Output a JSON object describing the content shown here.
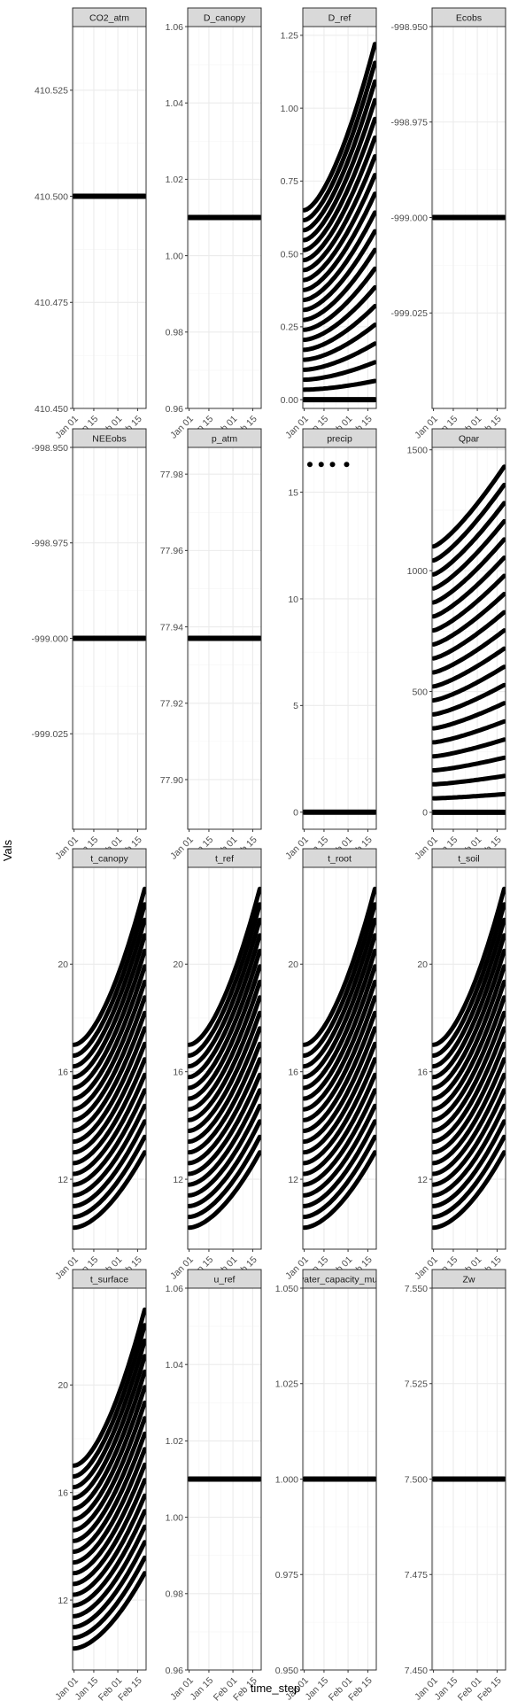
{
  "chart_data": {
    "type": "scatter",
    "xlabel": "time_step",
    "ylabel": "Vals",
    "x_tick_labels": [
      "Jan 01",
      "Jan 15",
      "Feb 01",
      "Feb 15"
    ],
    "x_ticks": [
      "2000-01-01",
      "2000-01-15",
      "2000-02-01",
      "2000-02-15"
    ],
    "x_range": [
      "1999-12-31",
      "2000-02-21"
    ],
    "grid": true,
    "facet_layout": {
      "rows": 4,
      "cols": 4
    },
    "panels": [
      {
        "title": "CO2_atm",
        "ylim": [
          410.45,
          410.54
        ],
        "y_ticks": [
          410.45,
          410.475,
          410.5,
          410.525
        ],
        "y_tick_labels": [
          "410.450",
          "410.475",
          "410.500",
          "410.525"
        ],
        "series": [
          {
            "kind": "constant",
            "value": 410.5
          }
        ]
      },
      {
        "title": "D_canopy",
        "ylim": [
          0.96,
          1.06
        ],
        "y_ticks": [
          0.96,
          0.98,
          1.0,
          1.02,
          1.04,
          1.06
        ],
        "y_tick_labels": [
          "0.96",
          "0.98",
          "1.00",
          "1.02",
          "1.04",
          "1.06"
        ],
        "series": [
          {
            "kind": "constant",
            "value": 1.01
          }
        ]
      },
      {
        "title": "D_ref",
        "ylim": [
          -0.03,
          1.28
        ],
        "y_ticks": [
          0.0,
          0.25,
          0.5,
          0.75,
          1.0,
          1.25
        ],
        "y_tick_labels": [
          "0.00",
          "0.25",
          "0.50",
          "0.75",
          "1.00",
          "1.25"
        ],
        "series": [
          {
            "kind": "curve_family",
            "start_min": 0.0,
            "start_max": 0.65,
            "end_min": 0.0,
            "end_max": 1.22,
            "exponent": 1.6,
            "n": 20
          },
          {
            "kind": "constant",
            "value": 0.0
          }
        ]
      },
      {
        "title": "Ecobs",
        "ylim": [
          -999.05,
          -998.95
        ],
        "y_ticks": [
          -999.025,
          -999.0,
          -998.975,
          -998.95
        ],
        "y_tick_labels": [
          "-999.025",
          "-999.000",
          "-998.975",
          "-998.950"
        ],
        "series": [
          {
            "kind": "constant",
            "value": -999.0
          }
        ]
      },
      {
        "title": "NEEobs",
        "ylim": [
          -999.05,
          -998.95
        ],
        "y_ticks": [
          -999.025,
          -999.0,
          -998.975,
          -998.95
        ],
        "y_tick_labels": [
          "-999.025",
          "-999.000",
          "-998.975",
          "-998.950"
        ],
        "series": [
          {
            "kind": "constant",
            "value": -999.0
          }
        ]
      },
      {
        "title": "p_atm",
        "ylim": [
          77.887,
          77.987
        ],
        "y_ticks": [
          77.9,
          77.92,
          77.94,
          77.96,
          77.98
        ],
        "y_tick_labels": [
          "77.90",
          "77.92",
          "77.94",
          "77.96",
          "77.98"
        ],
        "series": [
          {
            "kind": "constant",
            "value": 77.937
          }
        ]
      },
      {
        "title": "precip",
        "ylim": [
          -0.8,
          17.1
        ],
        "y_ticks": [
          0,
          5,
          10,
          15
        ],
        "y_tick_labels": [
          "0",
          "5",
          "10",
          "15"
        ],
        "series": [
          {
            "kind": "constant",
            "value": 0
          },
          {
            "kind": "points",
            "x": [
              "2000-01-05",
              "2000-01-13",
              "2000-01-21",
              "2000-01-31"
            ],
            "y": [
              16.3,
              16.3,
              16.3,
              16.3
            ]
          }
        ]
      },
      {
        "title": "Qpar",
        "ylim": [
          -70,
          1510
        ],
        "y_ticks": [
          0,
          500,
          1000,
          1500
        ],
        "y_tick_labels": [
          "0",
          "500",
          "1000",
          "1500"
        ],
        "series": [
          {
            "kind": "curve_family",
            "start_min": 0,
            "start_max": 1100,
            "end_min": 0,
            "end_max": 1430,
            "exponent": 1.3,
            "n": 20
          },
          {
            "kind": "constant",
            "value": 0
          }
        ]
      },
      {
        "title": "t_canopy",
        "ylim": [
          9.4,
          23.6
        ],
        "y_ticks": [
          12,
          16,
          20
        ],
        "y_tick_labels": [
          "12",
          "16",
          "20"
        ],
        "series": [
          {
            "kind": "curve_family",
            "start_min": 10.2,
            "start_max": 17.0,
            "end_min": 13.0,
            "end_max": 22.8,
            "exponent": 1.7,
            "n": 18
          }
        ]
      },
      {
        "title": "t_ref",
        "ylim": [
          9.4,
          23.6
        ],
        "y_ticks": [
          12,
          16,
          20
        ],
        "y_tick_labels": [
          "12",
          "16",
          "20"
        ],
        "series": [
          {
            "kind": "curve_family",
            "start_min": 10.2,
            "start_max": 17.0,
            "end_min": 13.0,
            "end_max": 22.8,
            "exponent": 1.7,
            "n": 18
          }
        ]
      },
      {
        "title": "t_root",
        "ylim": [
          9.4,
          23.6
        ],
        "y_ticks": [
          12,
          16,
          20
        ],
        "y_tick_labels": [
          "12",
          "16",
          "20"
        ],
        "series": [
          {
            "kind": "curve_family",
            "start_min": 10.2,
            "start_max": 17.0,
            "end_min": 13.0,
            "end_max": 22.8,
            "exponent": 1.7,
            "n": 18
          }
        ]
      },
      {
        "title": "t_soil",
        "ylim": [
          9.4,
          23.6
        ],
        "y_ticks": [
          12,
          16,
          20
        ],
        "y_tick_labels": [
          "12",
          "16",
          "20"
        ],
        "series": [
          {
            "kind": "curve_family",
            "start_min": 10.2,
            "start_max": 17.0,
            "end_min": 13.0,
            "end_max": 22.8,
            "exponent": 1.7,
            "n": 18
          }
        ]
      },
      {
        "title": "t_surface",
        "ylim": [
          9.4,
          23.6
        ],
        "y_ticks": [
          12,
          16,
          20
        ],
        "y_tick_labels": [
          "12",
          "16",
          "20"
        ],
        "series": [
          {
            "kind": "curve_family",
            "start_min": 10.2,
            "start_max": 17.0,
            "end_min": 13.0,
            "end_max": 22.8,
            "exponent": 1.7,
            "n": 18
          }
        ]
      },
      {
        "title": "u_ref",
        "ylim": [
          0.96,
          1.06
        ],
        "y_ticks": [
          0.96,
          0.98,
          1.0,
          1.02,
          1.04,
          1.06
        ],
        "y_tick_labels": [
          "0.96",
          "0.98",
          "1.00",
          "1.02",
          "1.04",
          "1.06"
        ],
        "series": [
          {
            "kind": "constant",
            "value": 1.01
          }
        ]
      },
      {
        "title": "water_capacity_mult",
        "ylim": [
          0.95,
          1.05
        ],
        "y_ticks": [
          0.95,
          0.975,
          1.0,
          1.025,
          1.05
        ],
        "y_tick_labels": [
          "0.950",
          "0.975",
          "1.000",
          "1.025",
          "1.050"
        ],
        "series": [
          {
            "kind": "constant",
            "value": 1.0
          }
        ]
      },
      {
        "title": "Zw",
        "ylim": [
          7.45,
          7.55
        ],
        "y_ticks": [
          7.45,
          7.475,
          7.5,
          7.525,
          7.55
        ],
        "y_tick_labels": [
          "7.450",
          "7.475",
          "7.500",
          "7.525",
          "7.550"
        ],
        "series": [
          {
            "kind": "constant",
            "value": 7.5
          }
        ]
      }
    ]
  },
  "colors": {
    "points": "#000000",
    "strip_fill": "#d9d9d9",
    "strip_border": "#333333",
    "panel_border": "#333333",
    "grid_major": "#ebebeb",
    "grid_minor": "#f5f5f5",
    "tick_label": "#4d4d4d",
    "axis_title": "#000000"
  }
}
